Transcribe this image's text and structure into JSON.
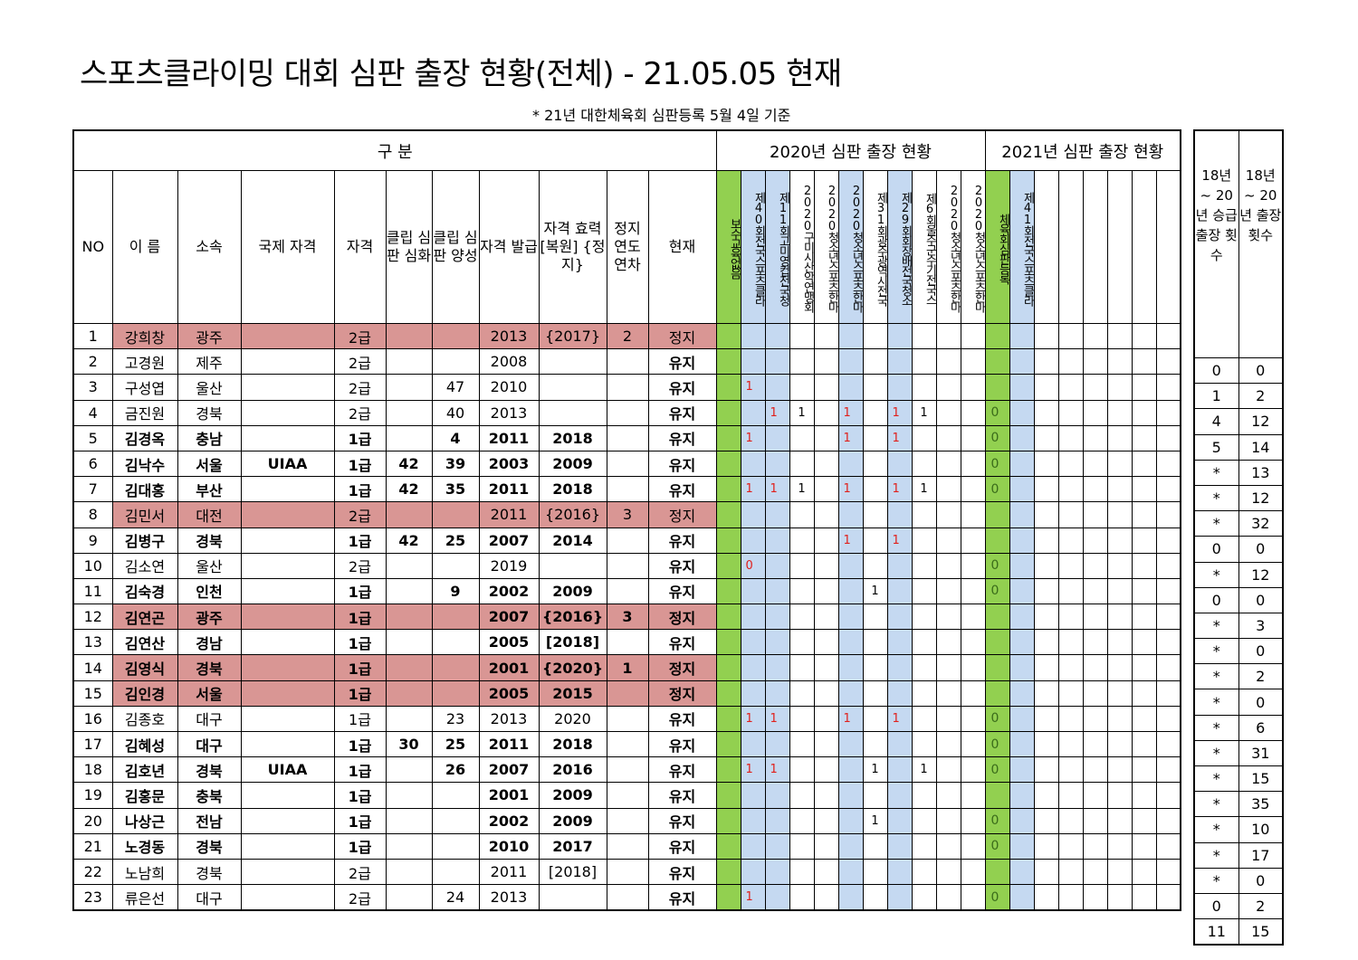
{
  "title": "스포츠클라이밍 대회 심판 출장 현황(전체) - 21.05.05 현재",
  "note": "* 21년 대한체육회 심판등록 5월 4일 기준",
  "groups": {
    "base": "구 분",
    "y2020": "2020년 심판 출장 현황",
    "y2021": "2021년 심판 출장 현황"
  },
  "headers": {
    "no": "NO",
    "name": "이 름",
    "org": "소속",
    "intl": "국제 자격",
    "grade": "자격",
    "deep": "클립 심판 심화",
    "train": "클립 심판 양성",
    "issue": "자격 발급",
    "valid": "자격 효력 [복원] {정지}",
    "stop": "정지 연도 연차",
    "status": "현재"
  },
  "events2020": [
    {
      "text": "보수교육없음",
      "color": "green"
    },
    {
      "text": "제40회전국스포츠클라",
      "color": "blue"
    },
    {
      "text": "제11회고미영컵전국청",
      "color": "blue"
    },
    {
      "text": "2020구미시산악연맹회",
      "color": "none"
    },
    {
      "text": "2020청소년스포츠한마",
      "color": "none"
    },
    {
      "text": "2020청소년스포츠한마",
      "color": "blue"
    },
    {
      "text": "제31회광주광역시전국",
      "color": "none"
    },
    {
      "text": "제29회회장배전국청소",
      "color": "blue"
    },
    {
      "text": "제6회울주군수기전국스",
      "color": "none"
    },
    {
      "text": "2020청소년스포츠한마",
      "color": "none"
    },
    {
      "text": "2020청소년스포츠한마",
      "color": "none"
    }
  ],
  "events2021": [
    {
      "text": "체육회심판등록",
      "color": "green"
    },
    {
      "text": "제41회전국스포츠클라",
      "color": "blue"
    }
  ],
  "right_headers": {
    "promo": "18년 ~ 20년 승급 출장 횟수",
    "total": "18년 ~ 20년 출장 횟수"
  },
  "rows": [
    {
      "no": "1",
      "name": "강희창",
      "org": "광주",
      "intl": "",
      "grade": "2급",
      "deep": "",
      "train": "",
      "issue": "2013",
      "valid": "{2017}",
      "stop": "2",
      "status": "정지",
      "bold": false,
      "pink": true,
      "marks": [
        "",
        "",
        "",
        "",
        "",
        "",
        "",
        "",
        "",
        "",
        ""
      ],
      "m21": [
        "",
        ""
      ],
      "promo": "0",
      "total": "0"
    },
    {
      "no": "2",
      "name": "고경원",
      "org": "제주",
      "intl": "",
      "grade": "2급",
      "deep": "",
      "train": "",
      "issue": "2008",
      "valid": "",
      "stop": "",
      "status": "유지",
      "bold": false,
      "pink": false,
      "marks": [
        "",
        "",
        "",
        "",
        "",
        "",
        "",
        "",
        "",
        "",
        ""
      ],
      "m21": [
        "",
        ""
      ],
      "promo": "1",
      "total": "2"
    },
    {
      "no": "3",
      "name": "구성엽",
      "org": "울산",
      "intl": "",
      "grade": "2급",
      "deep": "",
      "train": "47",
      "issue": "2010",
      "valid": "",
      "stop": "",
      "status": "유지",
      "bold": false,
      "pink": false,
      "marks": [
        "",
        "1",
        "",
        "",
        "",
        "",
        "",
        "",
        "",
        "",
        ""
      ],
      "m21": [
        "",
        ""
      ],
      "promo": "4",
      "total": "12"
    },
    {
      "no": "4",
      "name": "금진원",
      "org": "경북",
      "intl": "",
      "grade": "2급",
      "deep": "",
      "train": "40",
      "issue": "2013",
      "valid": "",
      "stop": "",
      "status": "유지",
      "bold": false,
      "pink": false,
      "marks": [
        "",
        "",
        "1",
        "1",
        "",
        "1",
        "",
        "1",
        "1",
        "",
        ""
      ],
      "m21": [
        "0",
        ""
      ],
      "promo": "5",
      "total": "14"
    },
    {
      "no": "5",
      "name": "김경옥",
      "org": "충남",
      "intl": "",
      "grade": "1급",
      "deep": "",
      "train": "4",
      "issue": "2011",
      "valid": "2018",
      "stop": "",
      "status": "유지",
      "bold": true,
      "pink": false,
      "marks": [
        "",
        "1",
        "",
        "",
        "",
        "1",
        "",
        "1",
        "",
        "",
        ""
      ],
      "m21": [
        "0",
        ""
      ],
      "promo": "*",
      "total": "13"
    },
    {
      "no": "6",
      "name": "김낙수",
      "org": "서울",
      "intl": "UIAA",
      "grade": "1급",
      "deep": "42",
      "train": "39",
      "issue": "2003",
      "valid": "2009",
      "stop": "",
      "status": "유지",
      "bold": true,
      "pink": false,
      "marks": [
        "",
        "",
        "",
        "",
        "",
        "",
        "",
        "",
        "",
        "",
        ""
      ],
      "m21": [
        "0",
        ""
      ],
      "promo": "*",
      "total": "12"
    },
    {
      "no": "7",
      "name": "김대홍",
      "org": "부산",
      "intl": "",
      "grade": "1급",
      "deep": "42",
      "train": "35",
      "issue": "2011",
      "valid": "2018",
      "stop": "",
      "status": "유지",
      "bold": true,
      "pink": false,
      "marks": [
        "",
        "1",
        "1",
        "1",
        "",
        "1",
        "",
        "1",
        "1",
        "",
        ""
      ],
      "m21": [
        "0",
        ""
      ],
      "promo": "*",
      "total": "32"
    },
    {
      "no": "8",
      "name": "김민서",
      "org": "대전",
      "intl": "",
      "grade": "2급",
      "deep": "",
      "train": "",
      "issue": "2011",
      "valid": "{2016}",
      "stop": "3",
      "status": "정지",
      "bold": false,
      "pink": true,
      "marks": [
        "",
        "",
        "",
        "",
        "",
        "",
        "",
        "",
        "",
        "",
        ""
      ],
      "m21": [
        "",
        ""
      ],
      "promo": "0",
      "total": "0"
    },
    {
      "no": "9",
      "name": "김병구",
      "org": "경북",
      "intl": "",
      "grade": "1급",
      "deep": "42",
      "train": "25",
      "issue": "2007",
      "valid": "2014",
      "stop": "",
      "status": "유지",
      "bold": true,
      "pink": false,
      "marks": [
        "",
        "",
        "",
        "",
        "",
        "1",
        "",
        "1",
        "",
        "",
        ""
      ],
      "m21": [
        "",
        ""
      ],
      "promo": "*",
      "total": "12"
    },
    {
      "no": "10",
      "name": "김소연",
      "org": "울산",
      "intl": "",
      "grade": "2급",
      "deep": "",
      "train": "",
      "issue": "2019",
      "valid": "",
      "stop": "",
      "status": "유지",
      "bold": false,
      "pink": false,
      "marks": [
        "",
        "0",
        "",
        "",
        "",
        "",
        "",
        "",
        "",
        "",
        ""
      ],
      "m21": [
        "0",
        ""
      ],
      "promo": "0",
      "total": "0"
    },
    {
      "no": "11",
      "name": "김숙경",
      "org": "인천",
      "intl": "",
      "grade": "1급",
      "deep": "",
      "train": "9",
      "issue": "2002",
      "valid": "2009",
      "stop": "",
      "status": "유지",
      "bold": true,
      "pink": false,
      "marks": [
        "",
        "",
        "",
        "",
        "",
        "",
        "1",
        "",
        "",
        "",
        ""
      ],
      "m21": [
        "0",
        ""
      ],
      "promo": "*",
      "total": "3"
    },
    {
      "no": "12",
      "name": "김연곤",
      "org": "광주",
      "intl": "",
      "grade": "1급",
      "deep": "",
      "train": "",
      "issue": "2007",
      "valid": "{2016}",
      "stop": "3",
      "status": "정지",
      "bold": true,
      "pink": true,
      "marks": [
        "",
        "",
        "",
        "",
        "",
        "",
        "",
        "",
        "",
        "",
        ""
      ],
      "m21": [
        "",
        ""
      ],
      "promo": "*",
      "total": "0"
    },
    {
      "no": "13",
      "name": "김연산",
      "org": "경남",
      "intl": "",
      "grade": "1급",
      "deep": "",
      "train": "",
      "issue": "2005",
      "valid": "[2018]",
      "stop": "",
      "status": "유지",
      "bold": true,
      "pink": false,
      "marks": [
        "",
        "",
        "",
        "",
        "",
        "",
        "",
        "",
        "",
        "",
        ""
      ],
      "m21": [
        "",
        ""
      ],
      "promo": "*",
      "total": "2"
    },
    {
      "no": "14",
      "name": "김영식",
      "org": "경북",
      "intl": "",
      "grade": "1급",
      "deep": "",
      "train": "",
      "issue": "2001",
      "valid": "{2020}",
      "stop": "1",
      "status": "정지",
      "bold": true,
      "pink": true,
      "marks": [
        "",
        "",
        "",
        "",
        "",
        "",
        "",
        "",
        "",
        "",
        ""
      ],
      "m21": [
        "",
        ""
      ],
      "promo": "*",
      "total": "0"
    },
    {
      "no": "15",
      "name": "김인경",
      "org": "서울",
      "intl": "",
      "grade": "1급",
      "deep": "",
      "train": "",
      "issue": "2005",
      "valid": "2015",
      "stop": "",
      "status": "정지",
      "bold": true,
      "pink": true,
      "marks": [
        "",
        "",
        "",
        "",
        "",
        "",
        "",
        "",
        "",
        "",
        ""
      ],
      "m21": [
        "",
        ""
      ],
      "promo": "*",
      "total": "6"
    },
    {
      "no": "16",
      "name": "김종호",
      "org": "대구",
      "intl": "",
      "grade": "1급",
      "deep": "",
      "train": "23",
      "issue": "2013",
      "valid": "2020",
      "stop": "",
      "status": "유지",
      "bold": false,
      "pink": false,
      "marks": [
        "",
        "1",
        "1",
        "",
        "",
        "1",
        "",
        "1",
        "",
        "",
        ""
      ],
      "m21": [
        "0",
        ""
      ],
      "promo": "*",
      "total": "31"
    },
    {
      "no": "17",
      "name": "김혜성",
      "org": "대구",
      "intl": "",
      "grade": "1급",
      "deep": "30",
      "train": "25",
      "issue": "2011",
      "valid": "2018",
      "stop": "",
      "status": "유지",
      "bold": true,
      "pink": false,
      "marks": [
        "",
        "",
        "",
        "",
        "",
        "",
        "",
        "",
        "",
        "",
        ""
      ],
      "m21": [
        "0",
        ""
      ],
      "promo": "*",
      "total": "15"
    },
    {
      "no": "18",
      "name": "김호년",
      "org": "경북",
      "intl": "UIAA",
      "grade": "1급",
      "deep": "",
      "train": "26",
      "issue": "2007",
      "valid": "2016",
      "stop": "",
      "status": "유지",
      "bold": true,
      "pink": false,
      "marks": [
        "",
        "1",
        "1",
        "",
        "",
        "",
        "1",
        "",
        "1",
        "",
        ""
      ],
      "m21": [
        "0",
        ""
      ],
      "promo": "*",
      "total": "35"
    },
    {
      "no": "19",
      "name": "김홍문",
      "org": "충북",
      "intl": "",
      "grade": "1급",
      "deep": "",
      "train": "",
      "issue": "2001",
      "valid": "2009",
      "stop": "",
      "status": "유지",
      "bold": true,
      "pink": false,
      "marks": [
        "",
        "",
        "",
        "",
        "",
        "",
        "",
        "",
        "",
        "",
        ""
      ],
      "m21": [
        "",
        ""
      ],
      "promo": "*",
      "total": "10"
    },
    {
      "no": "20",
      "name": "나상근",
      "org": "전남",
      "intl": "",
      "grade": "1급",
      "deep": "",
      "train": "",
      "issue": "2002",
      "valid": "2009",
      "stop": "",
      "status": "유지",
      "bold": true,
      "pink": false,
      "marks": [
        "",
        "",
        "",
        "",
        "",
        "",
        "1",
        "",
        "",
        "",
        ""
      ],
      "m21": [
        "0",
        ""
      ],
      "promo": "*",
      "total": "17"
    },
    {
      "no": "21",
      "name": "노경동",
      "org": "경북",
      "intl": "",
      "grade": "1급",
      "deep": "",
      "train": "",
      "issue": "2010",
      "valid": "2017",
      "stop": "",
      "status": "유지",
      "bold": true,
      "pink": false,
      "marks": [
        "",
        "",
        "",
        "",
        "",
        "",
        "",
        "",
        "",
        "",
        ""
      ],
      "m21": [
        "0",
        ""
      ],
      "promo": "*",
      "total": "0"
    },
    {
      "no": "22",
      "name": "노남희",
      "org": "경북",
      "intl": "",
      "grade": "2급",
      "deep": "",
      "train": "",
      "issue": "2011",
      "valid": "[2018]",
      "stop": "",
      "status": "유지",
      "bold": false,
      "pink": false,
      "marks": [
        "",
        "",
        "",
        "",
        "",
        "",
        "",
        "",
        "",
        "",
        ""
      ],
      "m21": [
        "",
        ""
      ],
      "promo": "0",
      "total": "2"
    },
    {
      "no": "23",
      "name": "류은선",
      "org": "대구",
      "intl": "",
      "grade": "2급",
      "deep": "",
      "train": "24",
      "issue": "2013",
      "valid": "",
      "stop": "",
      "status": "유지",
      "bold": false,
      "pink": false,
      "marks": [
        "",
        "1",
        "",
        "",
        "",
        "",
        "",
        "",
        "",
        "",
        ""
      ],
      "m21": [
        "0",
        ""
      ],
      "promo": "11",
      "total": "15"
    }
  ]
}
